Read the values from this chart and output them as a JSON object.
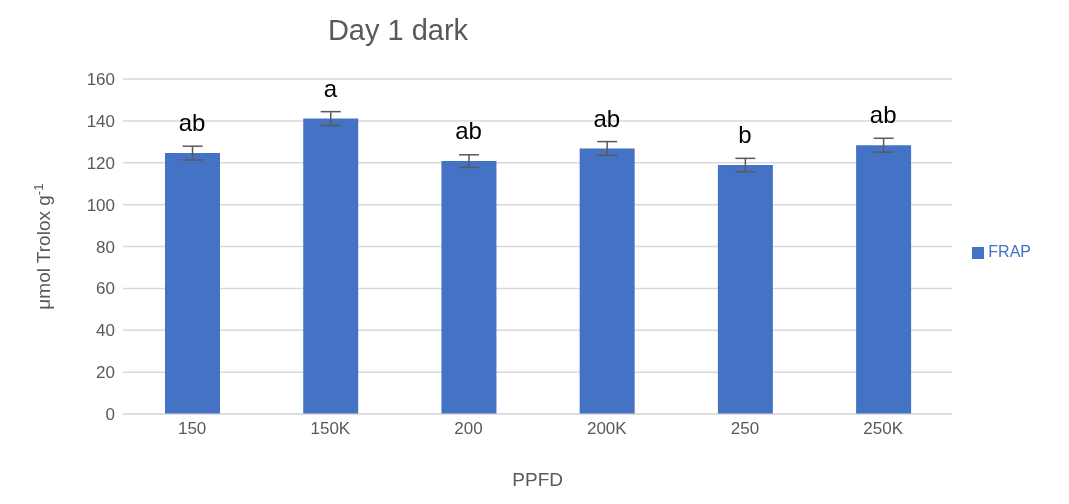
{
  "chart_data": {
    "type": "bar",
    "title": "Day 1 dark",
    "xlabel": "PPFD",
    "ylabel": "μmol Trolox g$^{-1}$",
    "categories": [
      "150",
      "150K",
      "200",
      "200K",
      "250",
      "250K"
    ],
    "series": [
      {
        "name": "FRAP",
        "color": "#4472c4",
        "values": [
          124.6,
          141.1,
          120.8,
          126.8,
          118.9,
          128.4
        ],
        "errors": [
          3.3,
          3.3,
          3,
          3.3,
          3.2,
          3.3
        ]
      }
    ],
    "ylim": [
      0,
      160
    ],
    "yticks": [
      0,
      20,
      40,
      60,
      80,
      100,
      120,
      140,
      160
    ],
    "grid": "y",
    "legend": "right",
    "annotations": [
      {
        "text": "ab",
        "x": "150",
        "y": 124.6
      },
      {
        "text": "a",
        "x": "150K",
        "y": 141.1
      },
      {
        "text": "ab",
        "x": "200",
        "y": 120.8
      },
      {
        "text": "ab",
        "x": "200K",
        "y": 126.8
      },
      {
        "text": "b",
        "x": "250",
        "y": 118.9
      },
      {
        "text": "ab",
        "x": "250K",
        "y": 128.4
      }
    ]
  }
}
